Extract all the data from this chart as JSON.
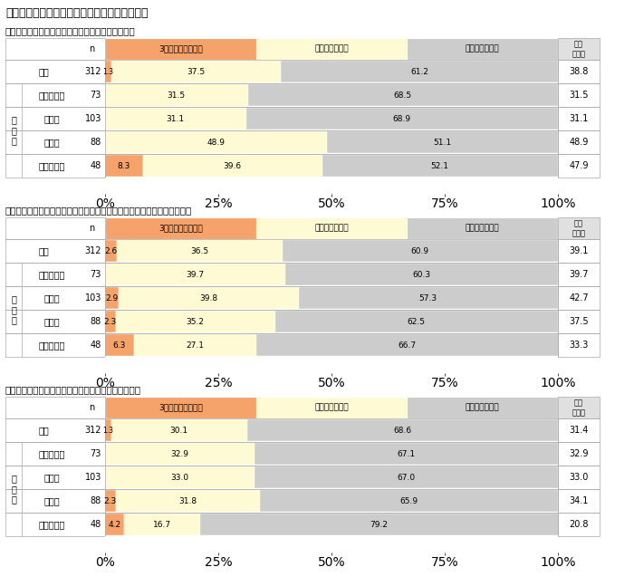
{
  "title": "》図5－1　性能向上リフォームの実施意向《",
  "title2": "【図５－１　性能向上リフォームの実施意向】",
  "sections": [
    {
      "subtitle": "＜高齢者が暮らしやすい住まいにするリフォーム＞",
      "rows": [
        {
          "label": "全体",
          "n": 312,
          "v1": 1.3,
          "v2": 37.5,
          "v3": 61.2,
          "total": 38.8
        },
        {
          "label": "３０代以下",
          "n": 73,
          "v1": 0.0,
          "v2": 31.5,
          "v3": 68.5,
          "total": 31.5
        },
        {
          "label": "４０代",
          "n": 103,
          "v1": 0.0,
          "v2": 31.1,
          "v3": 68.9,
          "total": 31.1
        },
        {
          "label": "５０代",
          "n": 88,
          "v1": 0.0,
          "v2": 48.9,
          "v3": 51.1,
          "total": 48.9
        },
        {
          "label": "６０代以上",
          "n": 48,
          "v1": 8.3,
          "v2": 39.6,
          "v3": 52.1,
          "total": 47.9
        }
      ]
    },
    {
      "subtitle": "＜エコリフォームなど、環境性やエネルギー効率に配慮したリフォーム＞",
      "rows": [
        {
          "label": "全体",
          "n": 312,
          "v1": 2.6,
          "v2": 36.5,
          "v3": 60.9,
          "total": 39.1
        },
        {
          "label": "３０代以下",
          "n": 73,
          "v1": 0.0,
          "v2": 39.7,
          "v3": 60.3,
          "total": 39.7
        },
        {
          "label": "４０代",
          "n": 103,
          "v1": 2.9,
          "v2": 39.8,
          "v3": 57.3,
          "total": 42.7
        },
        {
          "label": "５０代",
          "n": 88,
          "v1": 2.3,
          "v2": 35.2,
          "v3": 62.5,
          "total": 37.5
        },
        {
          "label": "６０代以上",
          "n": 48,
          "v1": 6.3,
          "v2": 27.1,
          "v3": 66.7,
          "total": 33.3
        }
      ]
    },
    {
      "subtitle": "＜耕震性など、住まいの安全性を高めるリフォーム＞",
      "rows": [
        {
          "label": "全体",
          "n": 312,
          "v1": 1.3,
          "v2": 30.1,
          "v3": 68.6,
          "total": 31.4
        },
        {
          "label": "３０代以下",
          "n": 73,
          "v1": 0.0,
          "v2": 32.9,
          "v3": 67.1,
          "total": 32.9
        },
        {
          "label": "４０代",
          "n": 103,
          "v1": 0.0,
          "v2": 33.0,
          "v3": 67.0,
          "total": 33.0
        },
        {
          "label": "５０代",
          "n": 88,
          "v1": 2.3,
          "v2": 31.8,
          "v3": 65.9,
          "total": 34.1
        },
        {
          "label": "６０代以上",
          "n": 48,
          "v1": 4.2,
          "v2": 16.7,
          "v3": 79.2,
          "total": 20.8
        }
      ]
    }
  ],
  "col_labels": [
    "3年以内に行いたい",
    "いずれ行いたい",
    "実施意向はない"
  ],
  "col_header_right": "実施\n意向計",
  "age_label": "年\n代\n別",
  "color_v1": "#F5A26B",
  "color_v2": "#FEFAD4",
  "color_v3": "#CCCCCC",
  "color_hdr_v1": "#F5A26B",
  "color_hdr_v2": "#FEFAD4",
  "color_hdr_v3": "#CCCCCC",
  "color_hdr_right": "#E0E0E0",
  "color_row_bg": "#FFFFFF",
  "color_border": "#999999"
}
